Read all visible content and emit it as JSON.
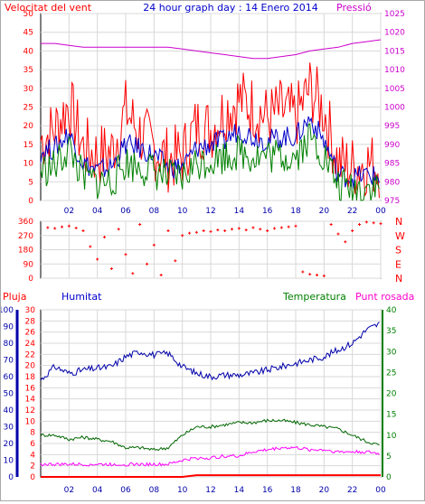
{
  "chart_data": [
    {
      "type": "line",
      "title": "24 hour graph day : 14 Enero 2014",
      "left_axis_label": "Velocitat del vent",
      "right_axis_label": "Pressió",
      "left_ticks": [
        "0",
        "5",
        "10",
        "15",
        "20",
        "25",
        "30",
        "35",
        "40",
        "45",
        "50"
      ],
      "right_ticks": [
        "975",
        "980",
        "985",
        "990",
        "995",
        "1000",
        "1005",
        "1010",
        "1015",
        "1020",
        "1025"
      ],
      "x_ticks": [
        "02",
        "04",
        "06",
        "08",
        "10",
        "12",
        "14",
        "16",
        "18",
        "20",
        "22",
        "00"
      ],
      "ylim_left": [
        0,
        50
      ],
      "ylim_right": [
        975,
        1025
      ],
      "hours": [
        0,
        1,
        2,
        3,
        4,
        5,
        6,
        7,
        8,
        9,
        10,
        11,
        12,
        13,
        14,
        15,
        16,
        17,
        18,
        19,
        20,
        21,
        22,
        23,
        24
      ],
      "series": [
        {
          "color": "#ff0000",
          "values": [
            16,
            19,
            26,
            14,
            12,
            13,
            24,
            18,
            14,
            11,
            12,
            20,
            19,
            24,
            27,
            25,
            22,
            24,
            22,
            30,
            24,
            10,
            9,
            10,
            9
          ]
        },
        {
          "color": "#0000cc",
          "values": [
            13,
            14,
            18,
            10,
            8,
            9,
            15,
            14,
            12,
            9,
            9,
            14,
            15,
            16,
            19,
            17,
            16,
            17,
            17,
            22,
            16,
            7,
            6,
            7,
            6
          ]
        },
        {
          "color": "#008000",
          "values": [
            8,
            9,
            14,
            6,
            5,
            5,
            10,
            9,
            8,
            6,
            6,
            10,
            11,
            12,
            13,
            12,
            12,
            12,
            12,
            17,
            12,
            4,
            3,
            4,
            3
          ]
        },
        {
          "color": "#cc00cc",
          "values": [
            1017,
            1017,
            1016.5,
            1016,
            1016,
            1016,
            1016,
            1016,
            1016,
            1016,
            1015.5,
            1015,
            1014.5,
            1014,
            1013.5,
            1013,
            1013,
            1013.5,
            1014,
            1015,
            1015.5,
            1016,
            1017,
            1017.5,
            1018
          ]
        }
      ]
    },
    {
      "type": "scatter",
      "left_ticks": [
        "0",
        "90",
        "180",
        "270",
        "360"
      ],
      "right_ticks": [
        "N",
        "W",
        "S",
        "E",
        "N"
      ],
      "ylim": [
        0,
        360
      ],
      "x_ticks": [],
      "direction": [
        {
          "hour": 0.5,
          "deg": 320
        },
        {
          "hour": 1.0,
          "deg": 315
        },
        {
          "hour": 1.5,
          "deg": 325
        },
        {
          "hour": 2.0,
          "deg": 330
        },
        {
          "hour": 2.5,
          "deg": 318
        },
        {
          "hour": 3.0,
          "deg": 300
        },
        {
          "hour": 3.5,
          "deg": 200
        },
        {
          "hour": 4.0,
          "deg": 120
        },
        {
          "hour": 4.5,
          "deg": 260
        },
        {
          "hour": 5.0,
          "deg": 60
        },
        {
          "hour": 5.5,
          "deg": 310
        },
        {
          "hour": 6.0,
          "deg": 150
        },
        {
          "hour": 6.5,
          "deg": 30
        },
        {
          "hour": 7.0,
          "deg": 340
        },
        {
          "hour": 7.5,
          "deg": 90
        },
        {
          "hour": 8.0,
          "deg": 210
        },
        {
          "hour": 8.5,
          "deg": 20
        },
        {
          "hour": 9.0,
          "deg": 300
        },
        {
          "hour": 9.5,
          "deg": 110
        },
        {
          "hour": 10.0,
          "deg": 270
        },
        {
          "hour": 10.5,
          "deg": 285
        },
        {
          "hour": 11.0,
          "deg": 290
        },
        {
          "hour": 11.5,
          "deg": 300
        },
        {
          "hour": 12.0,
          "deg": 295
        },
        {
          "hour": 12.5,
          "deg": 305
        },
        {
          "hour": 13.0,
          "deg": 300
        },
        {
          "hour": 13.5,
          "deg": 310
        },
        {
          "hour": 14.0,
          "deg": 315
        },
        {
          "hour": 14.5,
          "deg": 305
        },
        {
          "hour": 15.0,
          "deg": 320
        },
        {
          "hour": 15.5,
          "deg": 310
        },
        {
          "hour": 16.0,
          "deg": 300
        },
        {
          "hour": 16.5,
          "deg": 315
        },
        {
          "hour": 17.0,
          "deg": 320
        },
        {
          "hour": 17.5,
          "deg": 325
        },
        {
          "hour": 18.0,
          "deg": 330
        },
        {
          "hour": 18.5,
          "deg": 40
        },
        {
          "hour": 19.0,
          "deg": 25
        },
        {
          "hour": 19.5,
          "deg": 20
        },
        {
          "hour": 20.0,
          "deg": 15
        },
        {
          "hour": 20.5,
          "deg": 340
        },
        {
          "hour": 21.0,
          "deg": 280
        },
        {
          "hour": 21.5,
          "deg": 230
        },
        {
          "hour": 22.0,
          "deg": 300
        },
        {
          "hour": 22.5,
          "deg": 340
        },
        {
          "hour": 23.0,
          "deg": 355
        },
        {
          "hour": 23.5,
          "deg": 350
        },
        {
          "hour": 24.0,
          "deg": 345
        }
      ]
    },
    {
      "type": "line",
      "labels": {
        "pluja": "Pluja",
        "humitat": "Humitat",
        "temperatura": "Temperatura",
        "punt_rosada": "Punt rosada"
      },
      "pluja_ticks": [
        "0",
        "10",
        "20",
        "30",
        "40",
        "50",
        "60",
        "70",
        "80",
        "90",
        "100"
      ],
      "humitat_ticks": [
        "0",
        "2",
        "4",
        "6",
        "8",
        "10",
        "12",
        "14",
        "16",
        "18",
        "20",
        "22",
        "24",
        "26",
        "28",
        "30"
      ],
      "temp_ticks": [
        "0",
        "5",
        "10",
        "15",
        "20",
        "25",
        "30",
        "35",
        "40"
      ],
      "x_ticks": [
        "02",
        "04",
        "06",
        "08",
        "10",
        "12",
        "14",
        "16",
        "18",
        "20",
        "22",
        "00"
      ],
      "hours": [
        0,
        1,
        2,
        3,
        4,
        5,
        6,
        7,
        8,
        9,
        10,
        11,
        12,
        13,
        14,
        15,
        16,
        17,
        18,
        19,
        20,
        21,
        22,
        23,
        24
      ],
      "series": [
        {
          "name": "Humitat",
          "axis": "pluja",
          "color": "#0000aa",
          "values": [
            58,
            66,
            62,
            64,
            65,
            66,
            72,
            75,
            73,
            74,
            66,
            62,
            60,
            61,
            61,
            62,
            64,
            66,
            68,
            70,
            72,
            76,
            80,
            88,
            92
          ]
        },
        {
          "name": "Temperatura",
          "axis": "temp",
          "color": "#006600",
          "values": [
            10,
            10,
            9,
            9.5,
            9,
            8.5,
            7,
            7,
            6.5,
            7,
            10,
            12,
            12,
            12.5,
            13,
            13,
            13.5,
            13.5,
            13,
            12.5,
            12,
            11.5,
            10,
            8.5,
            7.5
          ]
        },
        {
          "name": "Punt rosada",
          "axis": "temp",
          "color": "#ff00ff",
          "values": [
            3,
            3,
            3,
            3,
            3,
            3,
            3,
            3,
            3,
            3,
            4,
            4.5,
            4.5,
            5,
            5,
            6,
            6.5,
            7,
            7,
            6.5,
            6.5,
            6,
            6,
            6,
            5.5
          ]
        },
        {
          "name": "Pluja",
          "axis": "pluja",
          "color": "#ff0000",
          "values": [
            0,
            0,
            0,
            0,
            0,
            0,
            0,
            0,
            0,
            0,
            0,
            1,
            1,
            1,
            1,
            1,
            1,
            1,
            1,
            1,
            1,
            1,
            1,
            1,
            1
          ]
        }
      ]
    }
  ]
}
